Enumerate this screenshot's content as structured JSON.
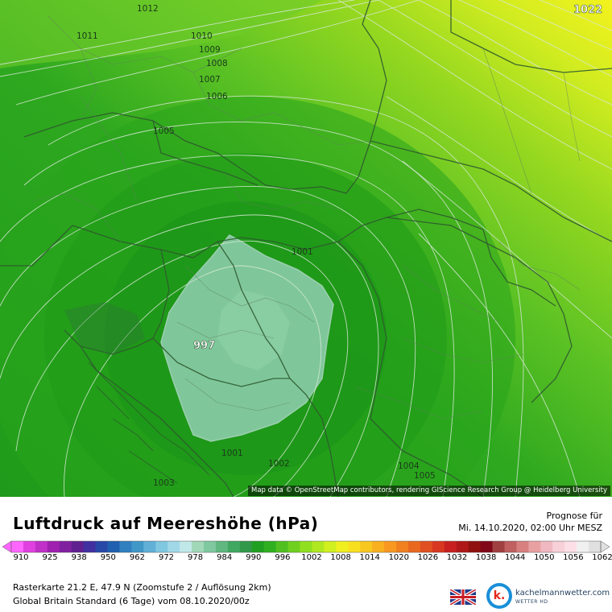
{
  "map": {
    "isobar_labels": [
      {
        "text": "1012"
      },
      {
        "text": "1011"
      },
      {
        "text": "1010"
      },
      {
        "text": "1009"
      },
      {
        "text": "1008"
      },
      {
        "text": "1007"
      },
      {
        "text": "1006"
      },
      {
        "text": "1005"
      },
      {
        "text": "1001"
      },
      {
        "text": "997"
      },
      {
        "text": "1001"
      },
      {
        "text": "1002"
      },
      {
        "text": "1003"
      },
      {
        "text": "1004"
      },
      {
        "text": "1005"
      },
      {
        "text": "1022"
      }
    ],
    "attribution": "Map data © OpenStreetMap contributors, rendering GIScience Research Group @ Heidelberg University"
  },
  "header": {
    "title": "Luftdruck auf Meereshöhe (hPa)",
    "forecast_label": "Prognose für",
    "forecast_time": "Mi. 14.10.2020, 02:00 Uhr MESZ"
  },
  "legend": {
    "ticks": [
      "910",
      "925",
      "938",
      "950",
      "962",
      "972",
      "978",
      "984",
      "990",
      "996",
      "1002",
      "1008",
      "1014",
      "1020",
      "1026",
      "1032",
      "1038",
      "1044",
      "1050",
      "1056",
      "1062"
    ],
    "colors": [
      "#ff66ff",
      "#e040e0",
      "#c030c8",
      "#a020b0",
      "#8020a0",
      "#602090",
      "#4030a0",
      "#2848a8",
      "#2060b0",
      "#3080c0",
      "#4098c8",
      "#60b0d8",
      "#80c8e0",
      "#a0d8e8",
      "#c0e8e8",
      "#a0d8b8",
      "#80c8a0",
      "#60b880",
      "#40a860",
      "#309848",
      "#20a020",
      "#30b020",
      "#50c020",
      "#70d020",
      "#90e020",
      "#b0e820",
      "#d0f020",
      "#f0f020",
      "#f8e020",
      "#f8c820",
      "#f8b020",
      "#f89820",
      "#f08020",
      "#e86820",
      "#e05020",
      "#d83820",
      "#c82020",
      "#b01818",
      "#901010",
      "#800818",
      "#a04040",
      "#c06060",
      "#d88080",
      "#e8a0a0",
      "#f0b8c0",
      "#f8d0d8",
      "#fce0e8",
      "#f0f0f0",
      "#e0e0e0"
    ]
  },
  "footer": {
    "grid_info": "Rasterkarte 21.2 E, 47.9 N (Zoomstufe 2 / Auflösung 2km)",
    "model_info": "Global Britain Standard (6 Tage) vom  08.10.2020/00z",
    "brand_name": "kachelmannwetter.com",
    "brand_sub": "WETTER HD",
    "logo_letter": "k."
  },
  "colors": {
    "low_center": "#7fc79a",
    "green_dark": "#1e9a1e",
    "green_mid": "#4cb82a",
    "green_light": "#8ed420",
    "yellow": "#f0f020"
  }
}
